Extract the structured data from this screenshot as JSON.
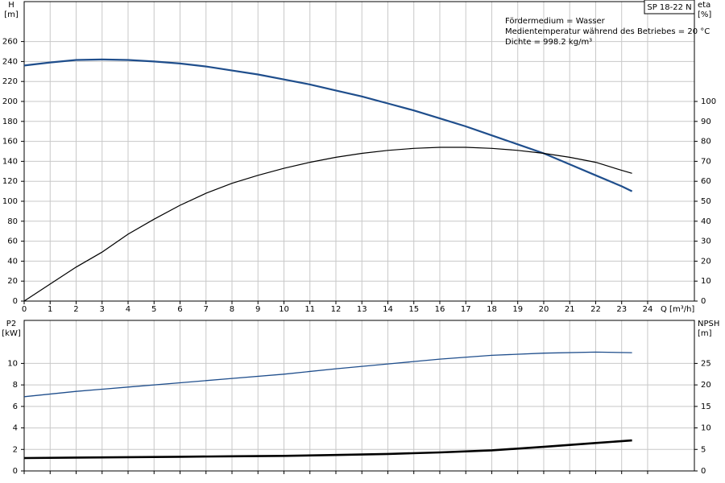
{
  "chart_data": [
    {
      "type": "line",
      "model": "SP 18-22 N",
      "annotations": [
        "Fördermedium = Wasser",
        "Medientemperatur während des Betriebes = 20 °C",
        "Dichte = 998.2 kg/m³"
      ],
      "y_label": "H",
      "y_unit": "[m]",
      "y2_label": "eta",
      "y2_unit": "[%]",
      "x_label": "Q [m³/h]",
      "x": [
        0,
        1,
        2,
        3,
        4,
        5,
        6,
        7,
        8,
        9,
        10,
        11,
        12,
        13,
        14,
        15,
        16,
        17,
        18,
        19,
        20,
        21,
        22,
        23,
        23.4
      ],
      "series": [
        {
          "color": "#1f4e8c",
          "values": [
            236,
            239,
            241.5,
            242,
            241.5,
            240,
            238,
            235,
            231,
            227,
            222,
            217,
            211,
            205,
            198,
            191,
            183,
            175,
            166,
            157,
            148,
            137,
            126,
            115,
            110
          ]
        },
        {
          "color": "#000000",
          "axis": "y2",
          "values": [
            0,
            8.5,
            17,
            24.5,
            33.5,
            41,
            48,
            54,
            59,
            63,
            66.5,
            69.5,
            72,
            74,
            75.5,
            76.5,
            77,
            77,
            76.5,
            75.5,
            74,
            72,
            69.5,
            65.5,
            64
          ]
        }
      ],
      "xlim": [
        0,
        25.8
      ],
      "xticks": [
        0,
        1,
        2,
        3,
        4,
        5,
        6,
        7,
        8,
        9,
        10,
        11,
        12,
        13,
        14,
        15,
        16,
        17,
        18,
        19,
        20,
        21,
        22,
        23,
        24
      ],
      "show_xtick_labels": true,
      "ylim": [
        0,
        300
      ],
      "yticks": [
        0,
        20,
        40,
        60,
        80,
        100,
        120,
        140,
        160,
        180,
        200,
        220,
        240,
        260
      ],
      "y2lim": [
        0,
        150
      ],
      "y2ticks": [
        0,
        10,
        20,
        30,
        40,
        50,
        60,
        70,
        80,
        90,
        100
      ],
      "grid": true
    },
    {
      "type": "line",
      "y_label": "P2",
      "y_unit": "[kW]",
      "y2_label": "NPSH",
      "y2_unit": "[m]",
      "x": [
        0,
        2,
        4,
        6,
        8,
        10,
        12,
        14,
        16,
        18,
        20,
        22,
        23.4
      ],
      "series": [
        {
          "color": "#1f4e8c",
          "values": [
            6.9,
            7.4,
            7.8,
            8.2,
            8.6,
            9.0,
            9.5,
            9.95,
            10.4,
            10.75,
            10.95,
            11.05,
            11.0
          ]
        },
        {
          "color": "#000000",
          "axis": "y2",
          "values": [
            3.0,
            3.1,
            3.2,
            3.3,
            3.4,
            3.5,
            3.7,
            3.95,
            4.3,
            4.8,
            5.6,
            6.5,
            7.1
          ]
        }
      ],
      "xlim": [
        0,
        25.8
      ],
      "xticks": [
        0,
        1,
        2,
        3,
        4,
        5,
        6,
        7,
        8,
        9,
        10,
        11,
        12,
        13,
        14,
        15,
        16,
        17,
        18,
        19,
        20,
        21,
        22,
        23,
        24
      ],
      "show_xtick_labels": false,
      "ylim": [
        0,
        14
      ],
      "yticks": [
        0,
        2,
        4,
        6,
        8,
        10
      ],
      "y2lim": [
        0,
        35
      ],
      "y2ticks": [
        0,
        5,
        10,
        15,
        20,
        25
      ],
      "grid": true
    }
  ]
}
